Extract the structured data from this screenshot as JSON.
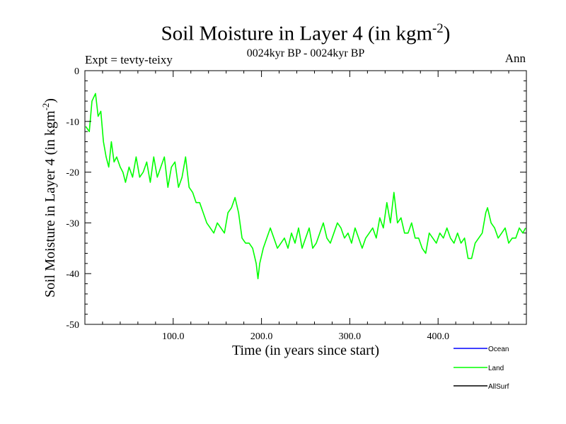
{
  "chart_data": {
    "type": "line",
    "title": "Soil Moisture in Layer 4 (in kgm",
    "title_superscript": "-2",
    "title_suffix": ")",
    "subtitle": "0024kyr BP - 0024kyr BP",
    "experiment_label": "Expt = tevty-teixy",
    "season_label": "Ann",
    "xlabel": "Time (in years since start)",
    "ylabel": "Soil Moisture in Layer 4 (in kgm",
    "ylabel_superscript": "-2",
    "ylabel_suffix": ")",
    "xlim": [
      0,
      500
    ],
    "ylim": [
      -50,
      0
    ],
    "x_ticks": [
      100,
      200,
      300,
      400
    ],
    "x_tick_labels": [
      "100.0",
      "200.0",
      "300.0",
      "400.0"
    ],
    "y_ticks": [
      0,
      -10,
      -20,
      -30,
      -40,
      -50
    ],
    "y_tick_labels": [
      "0",
      "-10",
      "-20",
      "-30",
      "-40",
      "-50"
    ],
    "legend_position": "bottom-right, below plot",
    "series": [
      {
        "name": "Ocean",
        "color": "#0000ff",
        "x": [],
        "values": []
      },
      {
        "name": "Land",
        "color": "#00ff00",
        "x": [
          1,
          5,
          8,
          12,
          15,
          18,
          21,
          24,
          27,
          30,
          33,
          36,
          40,
          43,
          46,
          50,
          54,
          58,
          62,
          66,
          70,
          74,
          78,
          82,
          86,
          90,
          94,
          98,
          102,
          106,
          110,
          114,
          118,
          122,
          126,
          130,
          134,
          138,
          142,
          146,
          150,
          154,
          158,
          162,
          166,
          170,
          174,
          178,
          182,
          186,
          190,
          194,
          196,
          198,
          202,
          206,
          210,
          214,
          218,
          222,
          226,
          230,
          234,
          238,
          242,
          246,
          250,
          254,
          258,
          262,
          266,
          270,
          274,
          278,
          282,
          286,
          290,
          294,
          298,
          302,
          306,
          310,
          314,
          318,
          322,
          326,
          330,
          334,
          338,
          342,
          346,
          348,
          350,
          354,
          358,
          362,
          366,
          370,
          374,
          378,
          382,
          386,
          390,
          394,
          398,
          402,
          406,
          410,
          414,
          418,
          422,
          426,
          430,
          434,
          438,
          442,
          446,
          450,
          454,
          456,
          460,
          464,
          468,
          472,
          476,
          480,
          484,
          488,
          492,
          496,
          499
        ],
        "values": [
          -11,
          -12,
          -6,
          -4.5,
          -9,
          -8,
          -14,
          -17,
          -19,
          -14,
          -18,
          -17,
          -19,
          -20,
          -22,
          -19,
          -21,
          -17,
          -21,
          -20,
          -18,
          -22,
          -17,
          -21,
          -19,
          -17,
          -23,
          -19,
          -18,
          -23,
          -21,
          -17,
          -23,
          -24,
          -26,
          -26,
          -28,
          -30,
          -31,
          -32,
          -30,
          -31,
          -32,
          -28,
          -27,
          -25,
          -28,
          -33,
          -34,
          -34,
          -35,
          -38,
          -41,
          -38,
          -35,
          -33,
          -31,
          -33,
          -35,
          -34,
          -33,
          -35,
          -32,
          -34,
          -31,
          -35,
          -33,
          -31,
          -35,
          -34,
          -32,
          -30,
          -33,
          -34,
          -32,
          -30,
          -31,
          -33,
          -32,
          -34,
          -31,
          -33,
          -35,
          -33,
          -32,
          -31,
          -33,
          -29,
          -31,
          -26,
          -30,
          -27,
          -24,
          -30,
          -29,
          -32,
          -32,
          -30,
          -33,
          -33,
          -35,
          -36,
          -32,
          -33,
          -34,
          -32,
          -33,
          -31,
          -33,
          -34,
          -32,
          -34,
          -33,
          -37,
          -37,
          -34,
          -33,
          -32,
          -28,
          -27,
          -30,
          -31,
          -33,
          -32,
          -31,
          -34,
          -33,
          -33,
          -31,
          -32,
          -31
        ]
      },
      {
        "name": "AllSurf",
        "color": "#000000",
        "x": [],
        "values": []
      }
    ]
  }
}
